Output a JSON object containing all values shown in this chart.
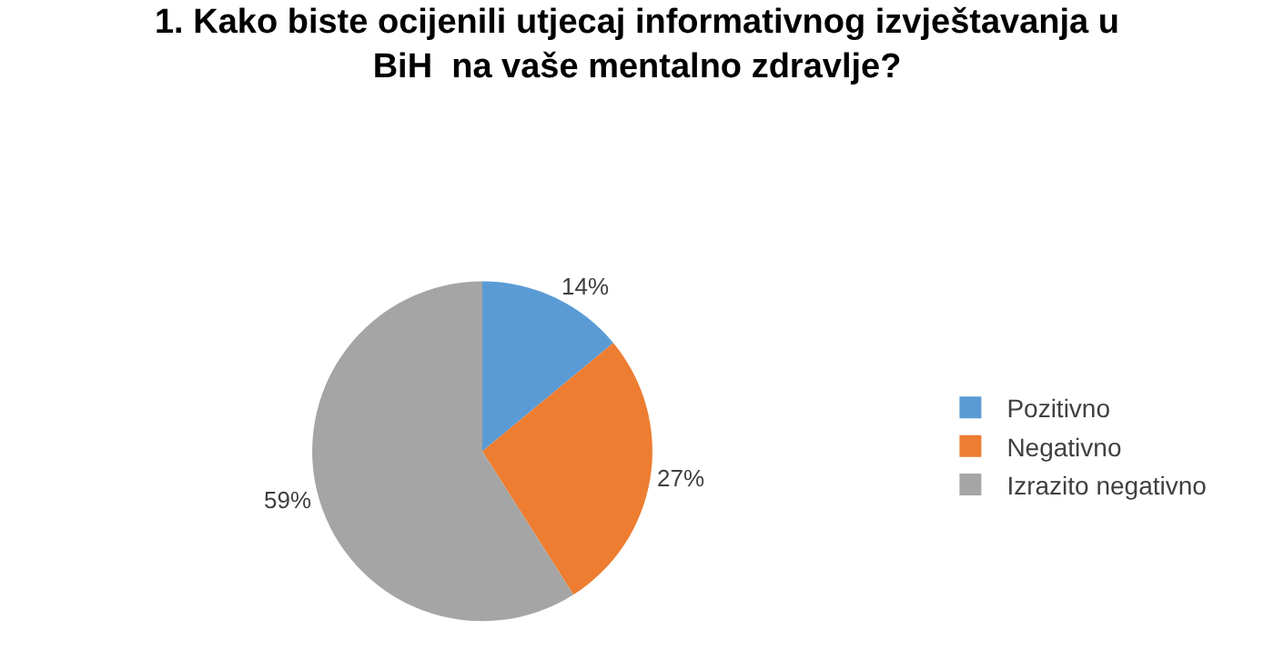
{
  "chart_data": {
    "type": "pie",
    "title": "1. Kako biste ocijenili utjecaj informativnog izvještavanja u\nBiH  na vaše mentalno zdravlje?",
    "categories": [
      "Pozitivno",
      "Negativno",
      "Izrazito negativno"
    ],
    "values": [
      14,
      27,
      59
    ],
    "colors": [
      "#5b9bd5",
      "#ed7d31",
      "#a5a5a5"
    ],
    "value_labels": [
      "14%",
      "27%",
      "59%"
    ],
    "legend": "right"
  }
}
